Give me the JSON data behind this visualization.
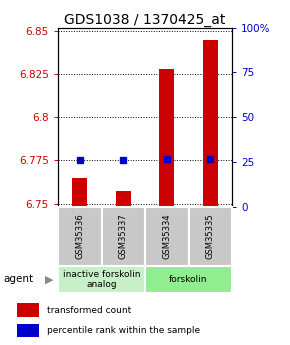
{
  "title": "GDS1038 / 1370425_at",
  "samples": [
    "GSM35336",
    "GSM35337",
    "GSM35334",
    "GSM35335"
  ],
  "red_values": [
    6.765,
    6.757,
    6.828,
    6.845
  ],
  "blue_values": [
    6.775,
    6.775,
    6.776,
    6.776
  ],
  "ylim_left": [
    6.748,
    6.852
  ],
  "ylim_right": [
    0,
    100
  ],
  "yticks_left": [
    6.75,
    6.775,
    6.8,
    6.825,
    6.85
  ],
  "yticks_right": [
    0,
    25,
    50,
    75,
    100
  ],
  "ytick_labels_left": [
    "6.75",
    "6.775",
    "6.8",
    "6.825",
    "6.85"
  ],
  "ytick_labels_right": [
    "0",
    "25",
    "50",
    "75",
    "100%"
  ],
  "groups": [
    {
      "label": "inactive forskolin\nanalog",
      "color": "#c8f0c8",
      "samples": [
        0,
        1
      ]
    },
    {
      "label": "forskolin",
      "color": "#90ee90",
      "samples": [
        2,
        3
      ]
    }
  ],
  "agent_label": "agent",
  "legend_red": "transformed count",
  "legend_blue": "percentile rank within the sample",
  "red_color": "#cc0000",
  "blue_color": "#0000cc",
  "bar_width": 0.35,
  "sample_box_color": "#c8c8c8",
  "title_fontsize": 10,
  "tick_fontsize": 7.5,
  "sample_fontsize": 6,
  "group_fontsize": 6.5,
  "legend_fontsize": 6.5
}
